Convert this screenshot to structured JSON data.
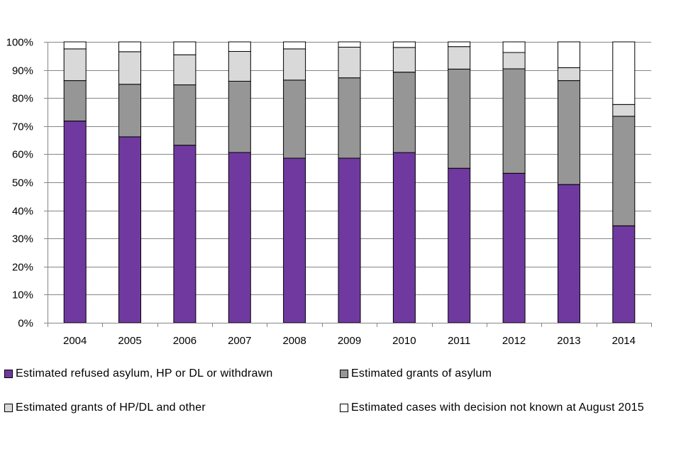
{
  "chart_data": {
    "type": "bar",
    "stacked": "percent",
    "title": "",
    "xlabel": "",
    "ylabel": "",
    "ylim": [
      0,
      100
    ],
    "yticks": [
      "0%",
      "10%",
      "20%",
      "30%",
      "40%",
      "50%",
      "60%",
      "70%",
      "80%",
      "90%",
      "100%"
    ],
    "categories": [
      "2004",
      "2005",
      "2006",
      "2007",
      "2008",
      "2009",
      "2010",
      "2011",
      "2012",
      "2013",
      "2014"
    ],
    "series": [
      {
        "name": "Estimated refused asylum, HP or DL or withdrawn",
        "color": "#7039a0",
        "values": [
          71.8,
          66.2,
          63.2,
          60.6,
          58.6,
          58.6,
          60.6,
          55.0,
          53.2,
          49.2,
          34.5
        ]
      },
      {
        "name": "Estimated grants of asylum",
        "color": "#969696",
        "values": [
          14.4,
          18.7,
          21.5,
          25.4,
          27.8,
          28.6,
          28.6,
          35.3,
          37.2,
          37.0,
          39.0
        ]
      },
      {
        "name": "Estimated grants of HP/DL and other",
        "color": "#d9d9d9",
        "values": [
          11.3,
          11.6,
          10.7,
          10.6,
          11.1,
          10.9,
          8.8,
          8.0,
          5.8,
          4.6,
          4.2
        ]
      },
      {
        "name": "Estimated cases with decision not known at August 2015",
        "color": "#ffffff",
        "values": [
          2.5,
          3.5,
          4.6,
          3.4,
          2.5,
          1.9,
          2.0,
          1.7,
          3.8,
          9.2,
          22.3
        ]
      }
    ],
    "legend_position": "bottom",
    "grid": true
  }
}
